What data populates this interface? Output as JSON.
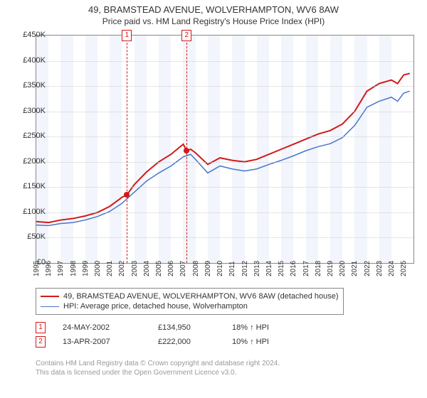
{
  "title": "49, BRAMSTEAD AVENUE, WOLVERHAMPTON, WV6 8AW",
  "subtitle": "Price paid vs. HM Land Registry's House Price Index (HPI)",
  "chart": {
    "type": "line",
    "background_color": "#ffffff",
    "grid_color": "#cccccc",
    "band_color": "#f2f5fb",
    "axis_color": "#888888",
    "x": {
      "min": 1995,
      "max": 2025.8,
      "ticks": [
        1995,
        1996,
        1997,
        1998,
        1999,
        2000,
        2001,
        2002,
        2003,
        2004,
        2005,
        2006,
        2007,
        2008,
        2009,
        2010,
        2011,
        2012,
        2013,
        2014,
        2015,
        2016,
        2017,
        2018,
        2019,
        2020,
        2021,
        2022,
        2023,
        2024,
        2025
      ],
      "band_years": [
        [
          1995,
          1996
        ],
        [
          1997,
          1998
        ],
        [
          1999,
          2000
        ],
        [
          2001,
          2002
        ],
        [
          2003,
          2004
        ],
        [
          2005,
          2006
        ],
        [
          2007,
          2008
        ],
        [
          2009,
          2010
        ],
        [
          2011,
          2012
        ],
        [
          2013,
          2014
        ],
        [
          2015,
          2016
        ],
        [
          2017,
          2018
        ],
        [
          2019,
          2020
        ],
        [
          2021,
          2022
        ],
        [
          2023,
          2024
        ]
      ]
    },
    "y": {
      "min": 0,
      "max": 450000,
      "ticks": [
        0,
        50000,
        100000,
        150000,
        200000,
        250000,
        300000,
        350000,
        400000,
        450000
      ],
      "labels": [
        "£0",
        "£50K",
        "£100K",
        "£150K",
        "£200K",
        "£250K",
        "£300K",
        "£350K",
        "£400K",
        "£450K"
      ]
    },
    "series": [
      {
        "id": "property",
        "label": "49, BRAMSTEAD AVENUE, WOLVERHAMPTON, WV6 8AW (detached house)",
        "color": "#d11919",
        "width": 2,
        "points": [
          [
            1995,
            82000
          ],
          [
            1996,
            80000
          ],
          [
            1997,
            85000
          ],
          [
            1998,
            88000
          ],
          [
            1999,
            93000
          ],
          [
            2000,
            100000
          ],
          [
            2001,
            112000
          ],
          [
            2002,
            130000
          ],
          [
            2002.4,
            134950
          ],
          [
            2003,
            155000
          ],
          [
            2004,
            180000
          ],
          [
            2005,
            200000
          ],
          [
            2006,
            215000
          ],
          [
            2006.5,
            225000
          ],
          [
            2007,
            235000
          ],
          [
            2007.28,
            222000
          ],
          [
            2007.6,
            225000
          ],
          [
            2008,
            218000
          ],
          [
            2009,
            195000
          ],
          [
            2010,
            208000
          ],
          [
            2011,
            203000
          ],
          [
            2012,
            200000
          ],
          [
            2013,
            205000
          ],
          [
            2014,
            215000
          ],
          [
            2015,
            225000
          ],
          [
            2016,
            235000
          ],
          [
            2017,
            245000
          ],
          [
            2018,
            255000
          ],
          [
            2019,
            262000
          ],
          [
            2020,
            275000
          ],
          [
            2021,
            300000
          ],
          [
            2022,
            340000
          ],
          [
            2023,
            355000
          ],
          [
            2024,
            362000
          ],
          [
            2024.5,
            355000
          ],
          [
            2025,
            372000
          ],
          [
            2025.5,
            375000
          ]
        ]
      },
      {
        "id": "hpi",
        "label": "HPI: Average price, detached house, Wolverhampton",
        "color": "#4a74c9",
        "width": 1.5,
        "points": [
          [
            1995,
            75000
          ],
          [
            1996,
            74000
          ],
          [
            1997,
            78000
          ],
          [
            1998,
            80000
          ],
          [
            1999,
            85000
          ],
          [
            2000,
            92000
          ],
          [
            2001,
            102000
          ],
          [
            2002,
            118000
          ],
          [
            2003,
            140000
          ],
          [
            2004,
            162000
          ],
          [
            2005,
            178000
          ],
          [
            2006,
            192000
          ],
          [
            2007,
            210000
          ],
          [
            2007.6,
            215000
          ],
          [
            2008,
            205000
          ],
          [
            2009,
            178000
          ],
          [
            2010,
            192000
          ],
          [
            2011,
            186000
          ],
          [
            2012,
            182000
          ],
          [
            2013,
            186000
          ],
          [
            2014,
            195000
          ],
          [
            2015,
            203000
          ],
          [
            2016,
            212000
          ],
          [
            2017,
            222000
          ],
          [
            2018,
            230000
          ],
          [
            2019,
            236000
          ],
          [
            2020,
            248000
          ],
          [
            2021,
            272000
          ],
          [
            2022,
            308000
          ],
          [
            2023,
            320000
          ],
          [
            2024,
            328000
          ],
          [
            2024.5,
            320000
          ],
          [
            2025,
            336000
          ],
          [
            2025.5,
            340000
          ]
        ]
      }
    ],
    "markers": [
      {
        "id": "1",
        "year": 2002.4,
        "price": 134950,
        "color": "#d11919"
      },
      {
        "id": "2",
        "year": 2007.28,
        "price": 222000,
        "color": "#d11919"
      }
    ]
  },
  "sales": [
    {
      "id": "1",
      "date": "24-MAY-2002",
      "price": "£134,950",
      "hpi": "18% ↑ HPI",
      "color": "#d11919"
    },
    {
      "id": "2",
      "date": "13-APR-2007",
      "price": "£222,000",
      "hpi": "10% ↑ HPI",
      "color": "#d11919"
    }
  ],
  "footer": {
    "line1": "Contains HM Land Registry data © Crown copyright and database right 2024.",
    "line2": "This data is licensed under the Open Government Licence v3.0."
  }
}
